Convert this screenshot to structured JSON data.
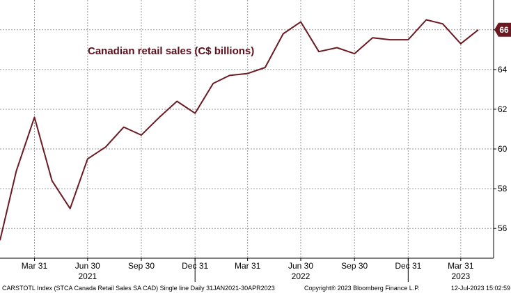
{
  "chart_data": {
    "type": "line",
    "title": "Canadian retail sales (C$ billions)",
    "color": "#6b1a22",
    "x": [
      "2021-01-31",
      "2021-02-28",
      "2021-03-31",
      "2021-04-30",
      "2021-05-31",
      "2021-06-30",
      "2021-07-31",
      "2021-08-31",
      "2021-09-30",
      "2021-10-31",
      "2021-11-30",
      "2021-12-31",
      "2022-01-31",
      "2022-02-28",
      "2022-03-31",
      "2022-04-30",
      "2022-05-31",
      "2022-06-30",
      "2022-07-31",
      "2022-08-31",
      "2022-09-30",
      "2022-10-31",
      "2022-11-30",
      "2022-12-31",
      "2023-01-31",
      "2023-02-28",
      "2023-03-31",
      "2023-04-30"
    ],
    "series": [
      {
        "values": [
          55.4,
          58.9,
          61.6,
          58.4,
          57.0,
          59.5,
          60.1,
          61.1,
          60.7,
          61.6,
          62.4,
          61.8,
          63.3,
          63.7,
          63.8,
          64.1,
          65.8,
          66.4,
          64.9,
          65.1,
          64.8,
          65.6,
          65.5,
          65.5,
          66.5,
          66.3,
          65.3,
          66.0
        ]
      }
    ],
    "ylim": [
      54.5,
      67.5
    ],
    "y_ticks": [
      "56",
      "58",
      "60",
      "62",
      "64",
      "66"
    ],
    "x_tick_labels": [
      "Mar 31",
      "Jun 30",
      "Sep 30",
      "Dec 31",
      "Mar 31",
      "Jun 30",
      "Sep 30",
      "Dec 31",
      "Mar 31"
    ],
    "x_tick_dates": [
      "2021-03-31",
      "2021-06-30",
      "2021-09-30",
      "2021-12-31",
      "2022-03-31",
      "2022-06-30",
      "2022-09-30",
      "2022-12-31",
      "2023-03-31"
    ],
    "year_labels": [
      "2021",
      "2022",
      "2023"
    ],
    "year_dates": [
      "2021-06-30",
      "2022-06-30",
      "2023-03-31"
    ],
    "year_separator_dates": [
      "2021-12-31",
      "2022-12-31"
    ],
    "last_value_label": "66",
    "grid": true
  },
  "footer": {
    "source": "CARSTOTL Index (STCA Canada Retail Sales SA CAD) Single line  Daily 31JAN2021-30APR2023",
    "copyright": "Copyright® 2023 Bloomberg Finance L.P.",
    "timestamp": "12-Jul-2023 15:02:59"
  }
}
